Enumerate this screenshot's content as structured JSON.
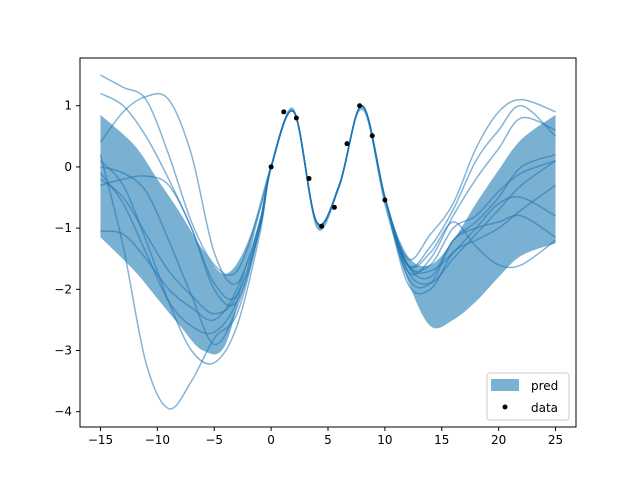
{
  "chart_data": {
    "type": "line",
    "title": "",
    "xlabel": "",
    "ylabel": "",
    "xlim": [
      -16.8,
      26.8
    ],
    "ylim": [
      -4.25,
      1.78
    ],
    "xticks": [
      -15,
      -10,
      -5,
      0,
      5,
      10,
      15,
      20,
      25
    ],
    "xtick_labels": [
      "−15",
      "−10",
      "−5",
      "0",
      "5",
      "10",
      "15",
      "20",
      "25"
    ],
    "yticks": [
      -4,
      -3,
      -2,
      -1,
      0,
      1
    ],
    "ytick_labels": [
      "−4",
      "−3",
      "−2",
      "−1",
      "0",
      "1"
    ],
    "grid": false,
    "legend": {
      "location": "lower right",
      "entries": [
        {
          "label": "pred",
          "kind": "band",
          "color": "#1f77b4"
        },
        {
          "label": "data",
          "kind": "point",
          "color": "#000000"
        }
      ]
    },
    "colors": {
      "band": "#7ab0d2",
      "samples": "#1f77b4",
      "data": "#000000"
    },
    "data_points": {
      "x": [
        0.0,
        1.11,
        2.22,
        3.33,
        4.44,
        5.56,
        6.67,
        7.78,
        8.89,
        10.0
      ],
      "y": [
        0.0,
        0.9,
        0.8,
        -0.19,
        -0.97,
        -0.66,
        0.38,
        1.0,
        0.51,
        -0.54
      ]
    },
    "prediction_band": {
      "x": [
        -15,
        -12,
        -10,
        -8,
        -6,
        -4,
        -2,
        0,
        2,
        4,
        6,
        8,
        10,
        12,
        14,
        16,
        18,
        20,
        22,
        25
      ],
      "upper": [
        0.85,
        0.35,
        -0.2,
        -0.75,
        -1.35,
        -1.75,
        -1.2,
        0.05,
        0.95,
        -0.9,
        -0.25,
        0.98,
        -0.5,
        -1.45,
        -1.6,
        -1.2,
        -0.6,
        -0.05,
        0.45,
        0.85
      ],
      "lower": [
        -1.15,
        -1.7,
        -2.15,
        -2.6,
        -3.0,
        -2.9,
        -1.5,
        -0.05,
        0.88,
        -1.0,
        -0.35,
        0.93,
        -0.65,
        -1.85,
        -2.6,
        -2.5,
        -2.2,
        -1.8,
        -1.45,
        -1.25
      ]
    },
    "series": [
      {
        "x": [
          -15,
          -13,
          -11,
          -9,
          -7,
          -5,
          -3,
          -1,
          0,
          2,
          4,
          6,
          8,
          10,
          12,
          14,
          16,
          18,
          20,
          22,
          25
        ],
        "y": [
          1.5,
          1.3,
          1.1,
          0.2,
          -0.9,
          -1.6,
          -1.7,
          -0.7,
          0.0,
          0.9,
          -0.9,
          -0.3,
          1.0,
          -0.5,
          -1.5,
          -1.1,
          -0.6,
          0.3,
          0.9,
          1.1,
          0.9
        ]
      },
      {
        "x": [
          -15,
          -13,
          -11,
          -9,
          -7,
          -5,
          -3,
          -1,
          0,
          2,
          4,
          6,
          8,
          10,
          12,
          14,
          16,
          18,
          20,
          22,
          25
        ],
        "y": [
          1.2,
          1.0,
          0.5,
          -0.2,
          -1.0,
          -1.9,
          -2.1,
          -0.9,
          0.0,
          0.9,
          -0.9,
          -0.3,
          1.0,
          -0.5,
          -1.6,
          -1.3,
          -0.7,
          0.1,
          0.6,
          1.0,
          0.5
        ]
      },
      {
        "x": [
          -15,
          -13,
          -11,
          -9,
          -7,
          -5,
          -3,
          -1,
          0,
          2,
          4,
          6,
          8,
          10,
          12,
          14,
          16,
          18,
          20,
          22,
          25
        ],
        "y": [
          0.4,
          0.9,
          1.15,
          1.1,
          0.2,
          -1.4,
          -1.9,
          -0.9,
          0.0,
          0.9,
          -0.9,
          -0.3,
          1.0,
          -0.5,
          -1.7,
          -1.5,
          -0.8,
          -0.2,
          0.3,
          0.8,
          0.6
        ]
      },
      {
        "x": [
          -15,
          -13,
          -11,
          -9,
          -7,
          -5,
          -3,
          -1,
          0,
          2,
          4,
          6,
          8,
          10,
          12,
          14,
          16,
          18,
          20,
          22,
          25
        ],
        "y": [
          0.2,
          -1.3,
          -3.2,
          -3.95,
          -3.5,
          -2.8,
          -2.4,
          -1.0,
          0.0,
          0.9,
          -0.9,
          -0.3,
          1.0,
          -0.5,
          -1.8,
          -1.9,
          -1.2,
          -0.9,
          -0.5,
          0.0,
          0.2
        ]
      },
      {
        "x": [
          -15,
          -13,
          -11,
          -9,
          -7,
          -5,
          -3,
          -1,
          0,
          2,
          4,
          6,
          8,
          10,
          12,
          14,
          16,
          18,
          20,
          22,
          25
        ],
        "y": [
          0.1,
          -0.3,
          -1.2,
          -2.2,
          -3.0,
          -3.2,
          -2.6,
          -1.1,
          0.0,
          0.9,
          -0.9,
          -0.3,
          1.0,
          -0.5,
          -1.7,
          -1.9,
          -1.5,
          -1.1,
          -0.7,
          -0.3,
          0.1
        ]
      },
      {
        "x": [
          -15,
          -13,
          -11,
          -9,
          -7,
          -5,
          -3,
          -1,
          0,
          2,
          4,
          6,
          8,
          10,
          12,
          14,
          16,
          18,
          20,
          22,
          25
        ],
        "y": [
          0.0,
          -0.1,
          -0.4,
          -1.2,
          -2.1,
          -2.9,
          -2.3,
          -1.0,
          0.0,
          0.9,
          -0.9,
          -0.3,
          1.0,
          -0.5,
          -1.6,
          -1.6,
          -1.0,
          -0.8,
          -0.4,
          -0.1,
          0.1
        ]
      },
      {
        "x": [
          -15,
          -13,
          -11,
          -9,
          -7,
          -5,
          -3,
          -1,
          0,
          2,
          4,
          6,
          8,
          10,
          12,
          14,
          16,
          18,
          20,
          22,
          25
        ],
        "y": [
          -0.3,
          -0.2,
          -0.15,
          -0.3,
          -1.0,
          -2.0,
          -2.2,
          -1.0,
          0.0,
          0.9,
          -0.9,
          -0.3,
          1.0,
          -0.5,
          -1.6,
          -1.7,
          -1.4,
          -1.0,
          -0.6,
          -0.5,
          -0.8
        ]
      },
      {
        "x": [
          -15,
          -13,
          -11,
          -9,
          -7,
          -5,
          -3,
          -1,
          0,
          2,
          4,
          6,
          8,
          10,
          12,
          14,
          16,
          18,
          20,
          22,
          25
        ],
        "y": [
          -0.2,
          -0.5,
          -1.1,
          -1.7,
          -2.1,
          -2.4,
          -2.1,
          -0.95,
          0.0,
          0.9,
          -0.9,
          -0.3,
          1.0,
          -0.5,
          -1.6,
          -1.8,
          -1.2,
          -1.0,
          -0.9,
          -0.8,
          -1.15
        ]
      },
      {
        "x": [
          -15,
          -13,
          -11,
          -9,
          -7,
          -5,
          -3,
          -1,
          0,
          2,
          4,
          6,
          8,
          10,
          12,
          14,
          16,
          18,
          20,
          22,
          25
        ],
        "y": [
          -1.05,
          -1.1,
          -1.5,
          -2.0,
          -2.3,
          -2.5,
          -2.0,
          -0.9,
          0.0,
          0.9,
          -0.9,
          -0.3,
          1.0,
          -0.5,
          -1.9,
          -2.0,
          -1.4,
          -1.2,
          -1.0,
          -0.7,
          -0.3
        ]
      },
      {
        "x": [
          -15,
          -13,
          -11,
          -9,
          -7,
          -5,
          -3,
          -1,
          0,
          2,
          4,
          6,
          8,
          10,
          12,
          14,
          16,
          18,
          20,
          22,
          25
        ],
        "y": [
          -0.1,
          -0.6,
          -1.4,
          -2.2,
          -2.6,
          -2.7,
          -2.2,
          -1.0,
          0.0,
          0.9,
          -0.9,
          -0.3,
          1.0,
          -0.5,
          -1.6,
          -1.4,
          -0.9,
          -1.3,
          -1.6,
          -1.6,
          -1.2
        ]
      }
    ]
  }
}
